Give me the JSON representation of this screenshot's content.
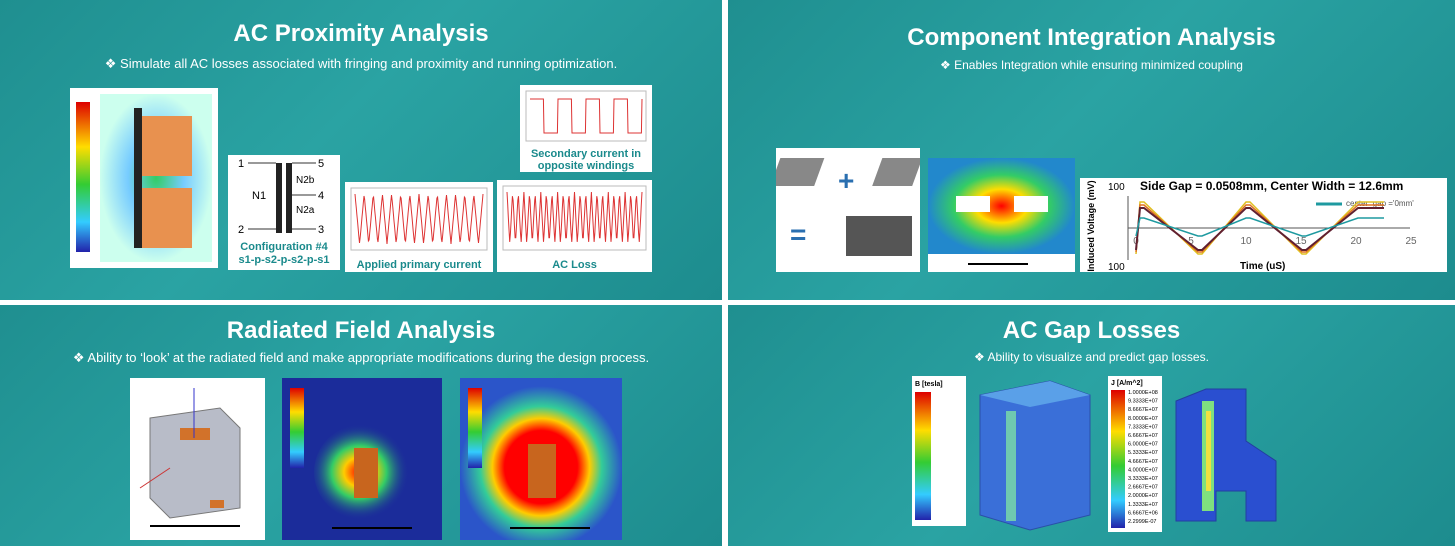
{
  "panels": [
    {
      "title": "AC Proximity Analysis",
      "subtitle": "❖ Simulate all AC losses associated with fringing and proximity and running optimization.",
      "transformer": {
        "pins": [
          "1",
          "5",
          "4",
          "2",
          "3"
        ],
        "windings": [
          "N1",
          "N2b",
          "N2a"
        ],
        "caption": [
          "Configuration #4",
          "s1-p-s2-p-s2-p-s1"
        ]
      },
      "captions": [
        "Applied primary current",
        "AC Loss",
        "Secondary current in opposite windings"
      ]
    },
    {
      "title": "Component Integration Analysis",
      "subtitle": "❖ Enables Integration while ensuring minimized coupling",
      "chart": {
        "title": "Side Gap = 0.0508mm, Center Width = 12.6mm",
        "ylabel": "Induced Voltage (mV)",
        "xlabel": "Time (uS)",
        "yticks": [
          "100",
          "100"
        ],
        "xticks": [
          "0",
          "5",
          "10",
          "15",
          "20",
          "25"
        ],
        "legend": "center_gap ='0mm'"
      }
    },
    {
      "title": "Radiated Field Analysis",
      "subtitle": "❖ Ability to ‘look’ at the radiated field and make appropriate modifications during the design process."
    },
    {
      "title": "AC Gap Losses",
      "subtitle": "❖ Ability to visualize and predict gap losses.",
      "colorbars": [
        {
          "label": "B [tesla]"
        },
        {
          "label": "J [A/m^2]",
          "values": [
            "1.0000E+08",
            "9.3333E+07",
            "8.6667E+07",
            "8.0000E+07",
            "7.3333E+07",
            "6.6667E+07",
            "6.0000E+07",
            "5.3333E+07",
            "4.6667E+07",
            "4.0000E+07",
            "3.3333E+07",
            "2.6667E+07",
            "2.0000E+07",
            "1.3333E+07",
            "6.6667E+06",
            "2.2999E-07"
          ]
        }
      ]
    }
  ]
}
